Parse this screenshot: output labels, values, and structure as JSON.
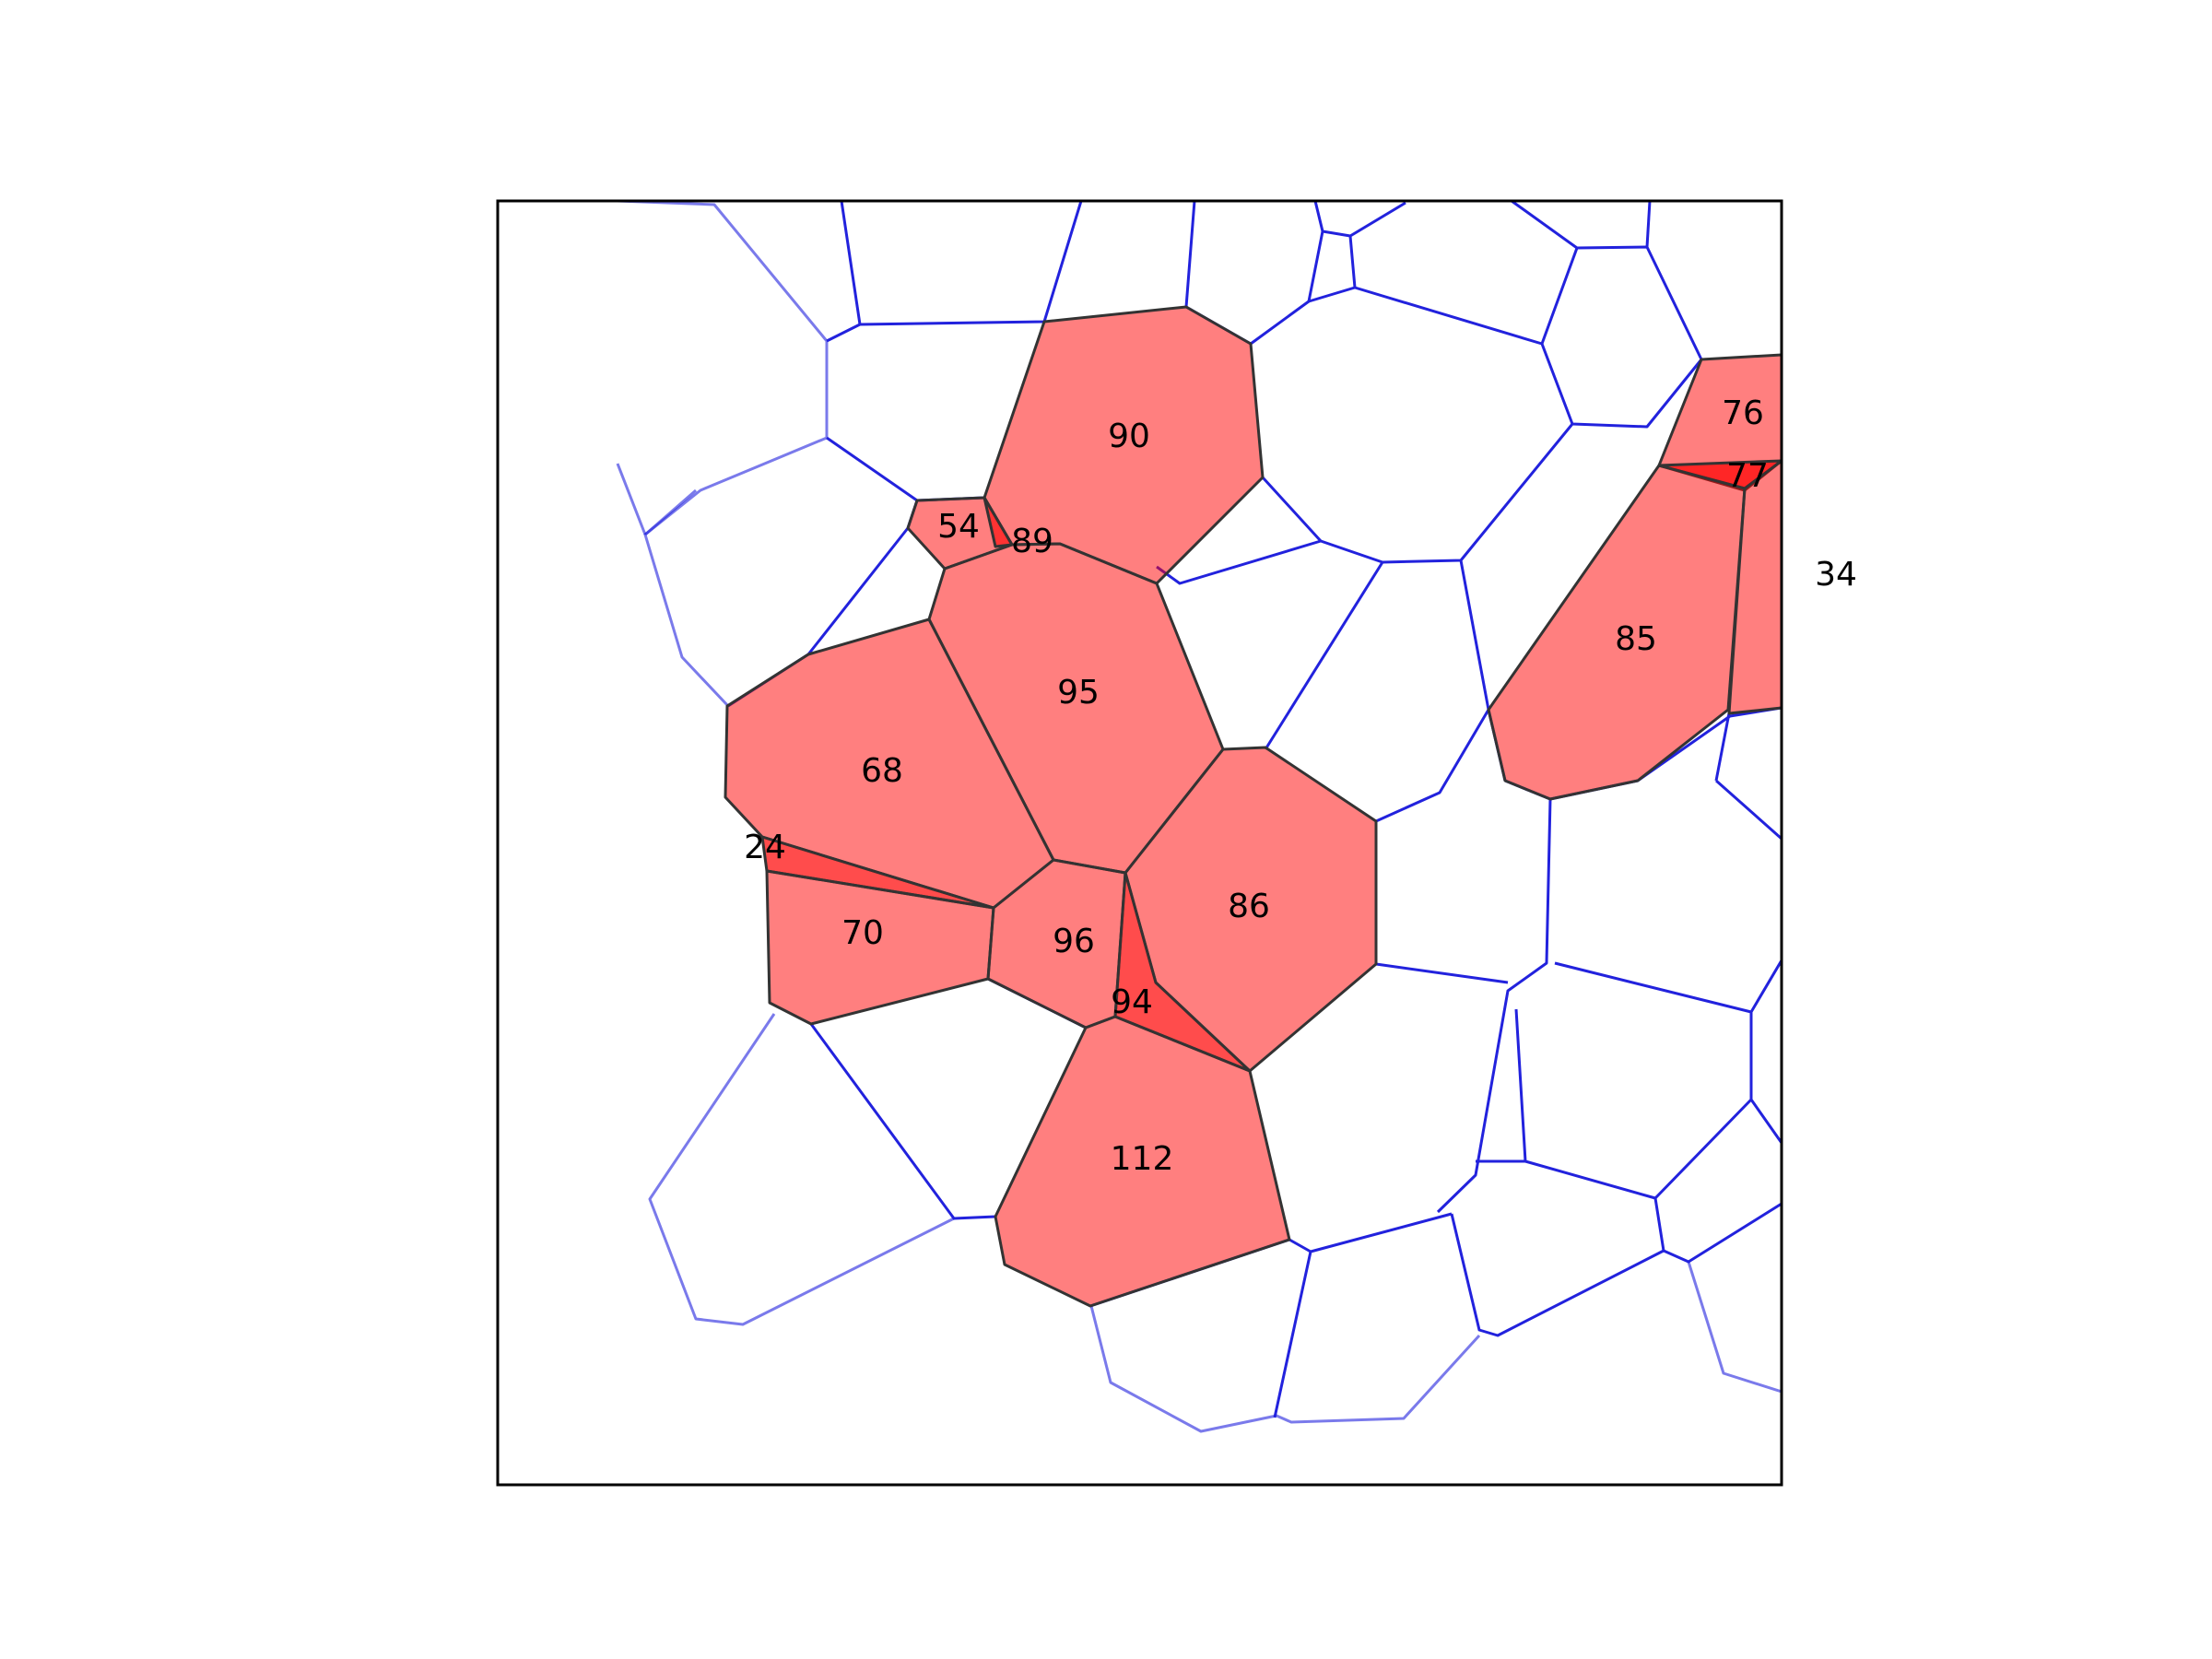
{
  "colors": {
    "edge": "#2222dd",
    "region_fill": "#ff0000",
    "region_stroke": "#333333",
    "frame": "#000000",
    "background": "#ffffff"
  },
  "regions": [
    {
      "id": "region-90",
      "label": "90"
    },
    {
      "id": "region-54",
      "label": "54"
    },
    {
      "id": "region-89",
      "label": "89"
    },
    {
      "id": "region-95",
      "label": "95"
    },
    {
      "id": "region-68",
      "label": "68"
    },
    {
      "id": "region-24",
      "label": "24"
    },
    {
      "id": "region-70",
      "label": "70"
    },
    {
      "id": "region-96",
      "label": "96"
    },
    {
      "id": "region-86",
      "label": "86"
    },
    {
      "id": "region-94",
      "label": "94"
    },
    {
      "id": "region-112",
      "label": "112"
    },
    {
      "id": "region-76",
      "label": "76"
    },
    {
      "id": "region-77",
      "label": "77"
    },
    {
      "id": "region-85",
      "label": "85"
    },
    {
      "id": "region-34",
      "label": "34"
    }
  ]
}
